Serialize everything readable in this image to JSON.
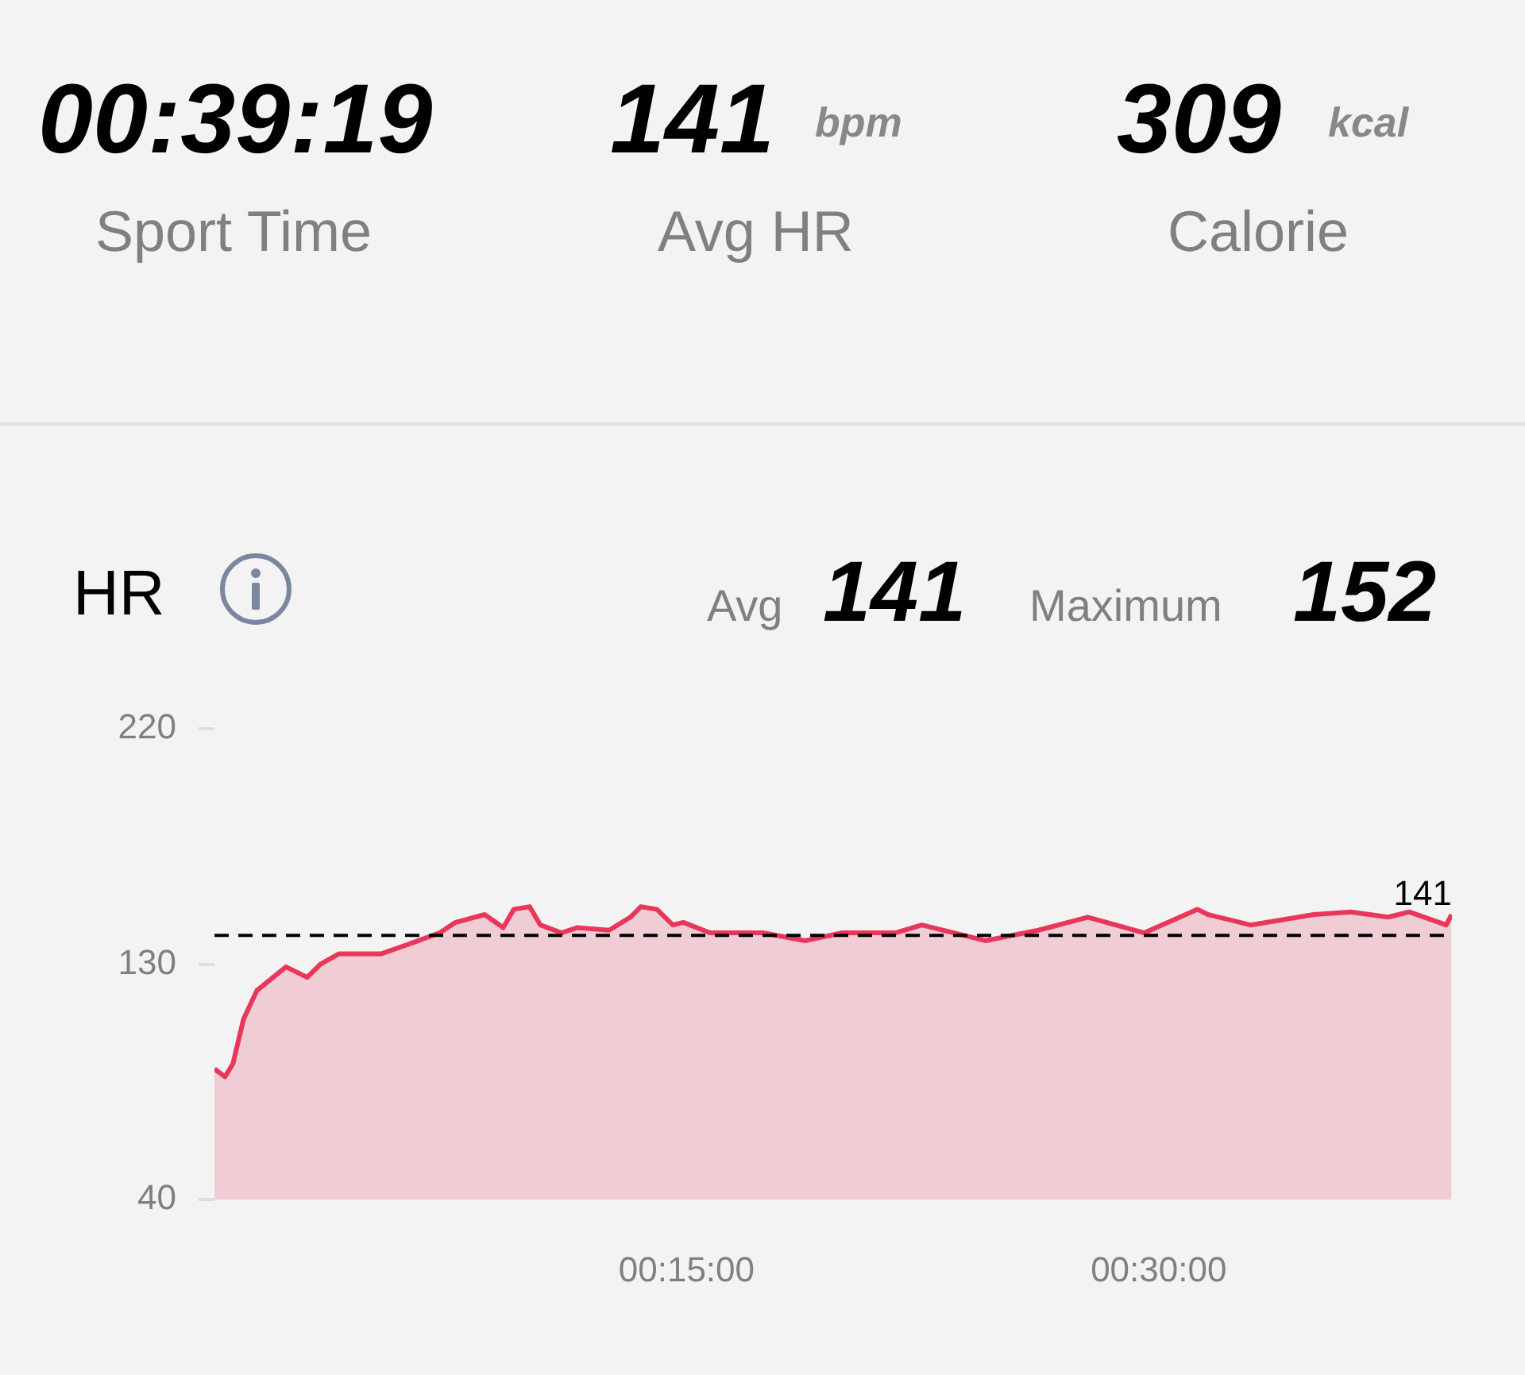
{
  "chart_data": {
    "type": "area",
    "title": "HR",
    "annotations": [
      "00:39:19",
      "Sport Time",
      "141",
      "bpm",
      "Avg HR",
      "309",
      "kcal",
      "Calorie",
      "Avg",
      "141",
      "Maximum",
      "152"
    ],
    "x": [
      0,
      0.0056,
      0.0098,
      0.0154,
      0.0225,
      0.0379,
      0.0491,
      0.0561,
      0.0659,
      0.0884,
      0.108,
      0.1193,
      0.1277,
      0.1431,
      0.1529,
      0.1585,
      0.1669,
      0.1726,
      0.1838,
      0.1922,
      0.209,
      0.2203,
      0.2258,
      0.2343,
      0.2427,
      0.2483,
      0.2624,
      0.2904,
      0.3129,
      0.3325,
      0.3605,
      0.3746,
      0.4082,
      0.4363,
      0.4625,
      0.4924,
      0.5205,
      0.5261,
      0.5486,
      0.5822,
      0.6019,
      0.6215,
      0.6327,
      0.6523,
      0.6551
    ],
    "series": [
      {
        "color": "#e8375a",
        "values": [
          90,
          87,
          92,
          109,
          120,
          129,
          125,
          130,
          134,
          134,
          139,
          142,
          146,
          149,
          144,
          151,
          152,
          145,
          142,
          144,
          143,
          148,
          152,
          151,
          145,
          146,
          142,
          142,
          139,
          142,
          142,
          145,
          139,
          143,
          148,
          142,
          151,
          149,
          145,
          149,
          150,
          148,
          150,
          145,
          149
        ]
      }
    ],
    "xlim": [
      0,
      0.6553
    ],
    "xticks": [
      {
        "value": 0.25,
        "label": "00:15:00"
      },
      {
        "value": 0.5,
        "label": "00:30:00"
      }
    ],
    "ylim": [
      40,
      220
    ],
    "yticks": [
      40,
      130,
      220
    ],
    "ref_lines": [
      {
        "axis": "y",
        "value": 141,
        "label": "141",
        "color": "#000000",
        "line_style": "dashed"
      }
    ],
    "grid": false,
    "legend": false
  }
}
